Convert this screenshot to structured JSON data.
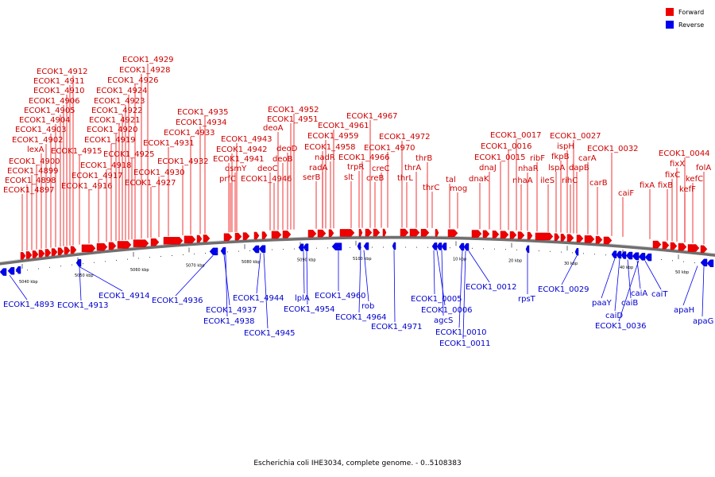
{
  "caption": "Escherichia coli IHE3034, complete genome. - 0..5108383",
  "legend": [
    {
      "label": "Forward",
      "color": "#ee0000"
    },
    {
      "label": "Reverse",
      "color": "#0000ee"
    }
  ],
  "colors": {
    "forward": "#ee0000",
    "reverse": "#0000ee",
    "forward_text": "#cc0000",
    "reverse_text": "#0000cc",
    "backbone": "#808080"
  },
  "scale_ticks": [
    "5040 kbp",
    "5050 kbp",
    "5060 kbp",
    "5070 kbp",
    "5080 kbp",
    "5090 kbp",
    "5100 kbp",
    "10 kbp",
    "20 kbp",
    "30 kbp",
    "40 kbp",
    "50 kbp"
  ],
  "forward_labels": [
    "ECOK1_4912",
    "ECOK1_4911",
    "ECOK1_4910",
    "ECOK1_4906",
    "ECOK1_4905",
    "ECOK1_4904",
    "ECOK1_4903",
    "ECOK1_4902",
    "lexA",
    "ECOK1_4900",
    "ECOK1_4899",
    "ECOK1_4898",
    "ECOK1_4897",
    "ECOK1_4915",
    "ECOK1_4916",
    "ECOK1_4917",
    "ECOK1_4918",
    "ECOK1_4919",
    "ECOK1_4920",
    "ECOK1_4921",
    "ECOK1_4922",
    "ECOK1_4923",
    "ECOK1_4924",
    "ECOK1_4926",
    "ECOK1_4928",
    "ECOK1_4929",
    "ECOK1_4925",
    "ECOK1_4927",
    "ECOK1_4930",
    "ECOK1_4931",
    "ECOK1_4932",
    "ECOK1_4933",
    "ECOK1_4934",
    "ECOK1_4935",
    "ECOK1_4943",
    "ECOK1_4942",
    "ECOK1_4941",
    "osmY",
    "prfC",
    "deoA",
    "deoD",
    "deoB",
    "deoC",
    "ECOK1_4946",
    "ECOK1_4952",
    "ECOK1_4951",
    "ECOK1_4961",
    "ECOK1_4959",
    "ECOK1_4958",
    "nadR",
    "radA",
    "serB",
    "ECOK1_4967",
    "ECOK1_4966",
    "trpR",
    "slt",
    "ECOK1_4970",
    "creC",
    "creB",
    "ECOK1_4972",
    "thrB",
    "thrA",
    "thrL",
    "thrC",
    "tal",
    "mog",
    "ECOK1_0017",
    "ECOK1_0016",
    "ECOK1_0015",
    "dnaJ",
    "dnaK",
    "ribF",
    "nhaR",
    "nhaA",
    "ileS",
    "ECOK1_0027",
    "ispH",
    "fkpB",
    "lspA",
    "dapB",
    "rihC",
    "ECOK1_0032",
    "carA",
    "carB",
    "caiF",
    "ECOK1_0044",
    "fixX",
    "folA",
    "fixC",
    "kefC",
    "fixA",
    "fixB",
    "kefF"
  ],
  "reverse_labels": [
    "ECOK1_4893",
    "ECOK1_4913",
    "ECOK1_4914",
    "ECOK1_4936",
    "ECOK1_4937",
    "ECOK1_4938",
    "ECOK1_4944",
    "ECOK1_4945",
    "lplA",
    "ECOK1_4954",
    "ECOK1_4960",
    "rob",
    "ECOK1_4964",
    "ECOK1_4971",
    "ECOK1_0005",
    "ECOK1_0006",
    "agcS",
    "ECOK1_0010",
    "ECOK1_0011",
    "ECOK1_0012",
    "rpsT",
    "ECOK1_0029",
    "paaY",
    "caiD",
    "caiB",
    "caiA",
    "caiT",
    "ECOK1_0036",
    "apaH",
    "apaG"
  ]
}
